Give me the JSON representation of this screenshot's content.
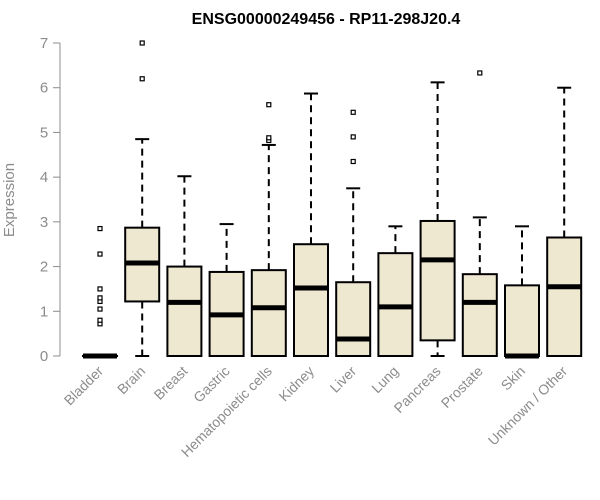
{
  "chart_data": {
    "type": "box",
    "title": "ENSG00000249456 - RP11-298J20.4",
    "ylabel": "Expression",
    "xlabel": "",
    "ylim": [
      0,
      7
    ],
    "yticks": [
      0,
      1,
      2,
      3,
      4,
      5,
      6,
      7
    ],
    "box_fill": "#efe8d0",
    "categories": [
      "Bladder",
      "Brain",
      "Breast",
      "Gastric",
      "Hematopoietic cells",
      "Kidney",
      "Liver",
      "Lung",
      "Pancreas",
      "Prostate",
      "Skin",
      "Unknown / Other"
    ],
    "boxes": [
      {
        "name": "Bladder",
        "min": 0,
        "q1": 0,
        "median": 0,
        "q3": 0,
        "max": 0,
        "outliers": [
          0.72,
          0.8,
          1.05,
          1.22,
          1.3,
          1.5,
          2.28,
          2.85
        ]
      },
      {
        "name": "Brain",
        "min": 0,
        "q1": 1.22,
        "median": 2.08,
        "q3": 2.87,
        "max": 4.85,
        "outliers": [
          6.2,
          7.0
        ]
      },
      {
        "name": "Breast",
        "min": 0,
        "q1": 0,
        "median": 1.2,
        "q3": 2.0,
        "max": 4.02,
        "outliers": []
      },
      {
        "name": "Gastric",
        "min": 0,
        "q1": 0,
        "median": 0.92,
        "q3": 1.88,
        "max": 2.95,
        "outliers": []
      },
      {
        "name": "Hematopoietic cells",
        "min": 0,
        "q1": 0,
        "median": 1.08,
        "q3": 1.92,
        "max": 4.72,
        "outliers": [
          4.82,
          4.88,
          5.62
        ]
      },
      {
        "name": "Kidney",
        "min": 0,
        "q1": 0,
        "median": 1.52,
        "q3": 2.5,
        "max": 5.87,
        "outliers": []
      },
      {
        "name": "Liver",
        "min": 0,
        "q1": 0,
        "median": 0.38,
        "q3": 1.65,
        "max": 3.75,
        "outliers": [
          4.35,
          4.9,
          5.45
        ]
      },
      {
        "name": "Lung",
        "min": 0,
        "q1": 0,
        "median": 1.1,
        "q3": 2.3,
        "max": 2.9,
        "outliers": []
      },
      {
        "name": "Pancreas",
        "min": 0,
        "q1": 0.35,
        "median": 2.15,
        "q3": 3.02,
        "max": 6.12,
        "outliers": []
      },
      {
        "name": "Prostate",
        "min": 0,
        "q1": 0,
        "median": 1.2,
        "q3": 1.83,
        "max": 3.1,
        "outliers": [
          6.33
        ]
      },
      {
        "name": "Skin",
        "min": 0,
        "q1": 0,
        "median": 0,
        "q3": 1.58,
        "max": 2.9,
        "outliers": []
      },
      {
        "name": "Unknown / Other",
        "min": 0,
        "q1": 0,
        "median": 1.55,
        "q3": 2.65,
        "max": 6.0,
        "outliers": []
      }
    ]
  }
}
